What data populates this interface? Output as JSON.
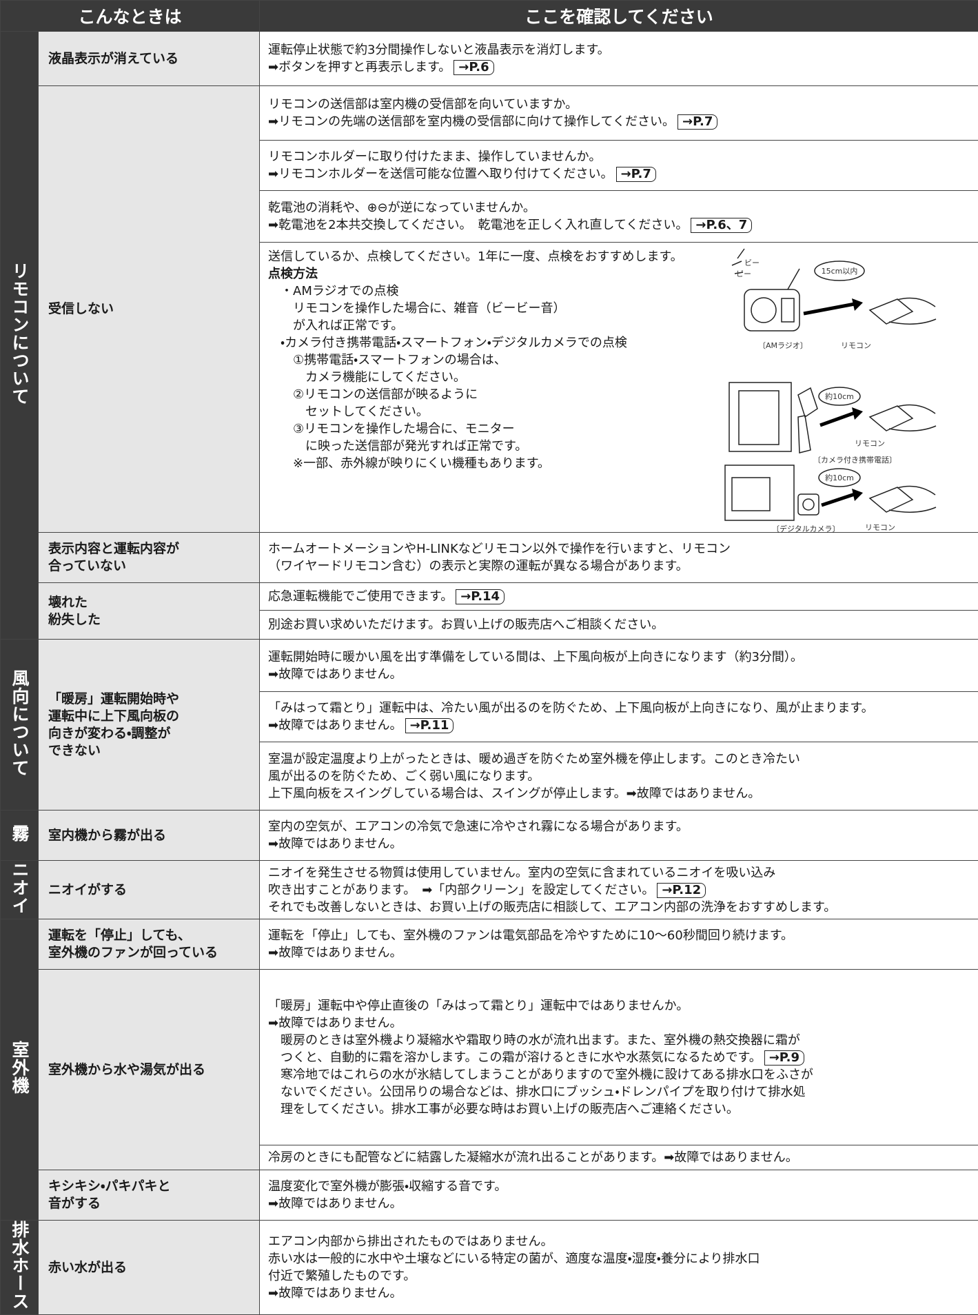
{
  "header": {
    "col1": "こんなときは",
    "col2": "ここを確認してください"
  },
  "sections": [
    {
      "label": "リモコンについて",
      "rows": [
        {
          "category": "液晶表示が消えている",
          "cells": [
            [
              "運転停止状態で約3分間操作しないと液晶表示を消灯します。",
              {
                "text": "➡ボタンを押すと再表示します。",
                "ref": "→P.6"
              }
            ]
          ]
        },
        {
          "category": "受信しない",
          "cells": [
            [
              "リモコンの送信部は室内機の受信部を向いていますか。",
              {
                "text": "➡リモコンの先端の送信部を室内機の受信部に向けて操作してください。",
                "ref": "→P.7"
              }
            ],
            [
              "リモコンホルダーに取り付けたまま、操作していませんか。",
              {
                "text": "➡リモコンホルダーを送信可能な位置へ取り付けてください。",
                "ref": "→P.7"
              }
            ],
            [
              "乾電池の消耗や、⊕⊖が逆になっていませんか。",
              {
                "text": "➡乾電池を2本共交換してください。　乾電池を正しく入れ直してください。",
                "ref": "→P.6、7"
              }
            ],
            [
              "送信しているか、点検してください。1年に一度、点検をおすすめします。",
              {
                "text": "点検方法",
                "bold": true
              },
              "　・AMラジオでの点検",
              "　　リモコンを操作した場合に、雑音（ビービー音）",
              "　　が入れば正常です。",
              "　・カメラ付き携帯電話・スマートフォン・デジタルカメラでの点検",
              "　　①携帯電話・スマートフォンの場合は、",
              "　　　カメラ機能にしてください。",
              "　　②リモコンの送信部が映るように",
              "　　　セットしてください。",
              "　　③リモコンを操作した場合に、モニター",
              "　　　に映った送信部が発光すれば正常です。",
              "　　※一部、赤外線が映りにくい機種もあります。"
            ]
          ]
        },
        {
          "category": "表示内容と運転内容が\n合っていない",
          "cells": [
            [
              "ホームオートメーションやH-LINKなどリモコン以外で操作を行いますと、リモコン",
              "（ワイヤードリモコン含む）の表示と実際の運転が異なる場合があります。"
            ]
          ]
        },
        {
          "category": "壊れた\n紛失した",
          "cells": [
            [
              {
                "text": "応急運転機能でご使用できます。",
                "ref": "→P.14"
              }
            ],
            [
              "別途お買い求めいただけます。お買い上げの販売店へご相談ください。"
            ]
          ]
        }
      ]
    },
    {
      "label": "風向について",
      "rows": [
        {
          "category": "「暖房」運転開始時や\n運転中に上下風向板の\n向きが変わる・調整が\nできない",
          "cells": [
            [
              "運転開始時に暖かい風を出す準備をしている間は、上下風向板が上向きになります（約3分間）。",
              "➡故障ではありません。"
            ],
            [
              "「みはって霜とり」運転中は、冷たい風が出るのを防ぐため、上下風向板が上向きになり、風が止まります。",
              {
                "text": "➡故障ではありません。",
                "ref": "→P.11"
              }
            ],
            [
              "室温が設定温度より上がったときは、暖め過ぎを防ぐため室外機を停止します。このとき冷たい",
              "風が出るのを防ぐため、ごく弱い風になります。",
              "上下風向板をスイングしている場合は、スイングが停止します。➡故障ではありません。"
            ]
          ]
        }
      ]
    },
    {
      "label": "霧",
      "rows": [
        {
          "category": "室内機から霧が出る",
          "cells": [
            [
              "室内の空気が、エアコンの冷気で急速に冷やされ霧になる場合があります。",
              "➡故障ではありません。"
            ]
          ]
        }
      ]
    },
    {
      "label": "ニオイ",
      "rows": [
        {
          "category": "ニオイがする",
          "cells": [
            [
              "ニオイを発生させる物質は使用していません。室内の空気に含まれているニオイを吸い込み",
              {
                "text": "吹き出すことがあります。　➡「内部クリーン」を設定してください。",
                "ref": "→P.12"
              },
              "それでも改善しないときは、お買い上げの販売店に相談して、エアコン内部の洗浄をおすすめします。"
            ]
          ]
        }
      ]
    },
    {
      "label": "室外機",
      "rows": [
        {
          "category": "運転を「停止」しても、\n室外機のファンが回っている",
          "cells": [
            [
              "運転を「停止」しても、室外機のファンは電気部品を冷やすために10～60秒間回り続けます。",
              "➡故障ではありません。"
            ]
          ]
        },
        {
          "category": "室外機から水や湯気が出る",
          "cells": [
            [
              "「暖房」運転中や停止直後の「みはって霜とり」運転中ではありませんか。",
              "➡故障ではありません。",
              "　暖房のときは室外機より凝縮水や霜取り時の水が流れ出ます。また、室外機の熱交換器に霜が",
              {
                "text": "　つくと、自動的に霜を溶かします。この霜が溶けるときに水や水蒸気になるためです。",
                "ref": "→P.9"
              },
              "　寒冷地ではこれらの水が氷結してしまうことがありますので室外機に設けてある排水口をふさが",
              "　ないでください。公団吊りの場合などは、排水口にブッシュ・ドレンパイプを取り付けて排水処",
              "　理をしてください。排水工事が必要な時はお買い上げの販売店へご連絡ください。"
            ],
            [
              "冷房のときにも配管などに結露した凝縮水が流れ出ることがあります。➡故障ではありません。"
            ]
          ]
        },
        {
          "category": "キシキシ・パキパキと\n音がする",
          "cells": [
            [
              "温度変化で室外機が膨張・収縮する音です。",
              "➡故障ではありません。"
            ]
          ]
        }
      ]
    },
    {
      "label": "排水ホース",
      "rows": [
        {
          "category": "赤い水が出る",
          "cells": [
            [
              "エアコン内部から排出されたものではありません。",
              "赤い水は一般的に水中や土壌などにいる特定の菌が、適度な温度・湿度・養分により排水口",
              "付近で繁殖したものです。",
              "➡故障ではありません。"
            ]
          ]
        }
      ]
    }
  ],
  "figures": {
    "radio": {
      "beep1": "ビー",
      "beep2": "ビー",
      "distance": "15cm以内",
      "caption": "〔AMラジオ〕",
      "remote": "リモコン"
    },
    "phone": {
      "distance": "約10cm",
      "remote": "リモコン",
      "caption": "〔カメラ付き携帯電話〕"
    },
    "camera": {
      "distance": "約10cm",
      "caption": "〔デジタルカメラ〕",
      "remote": "リモコン"
    }
  }
}
